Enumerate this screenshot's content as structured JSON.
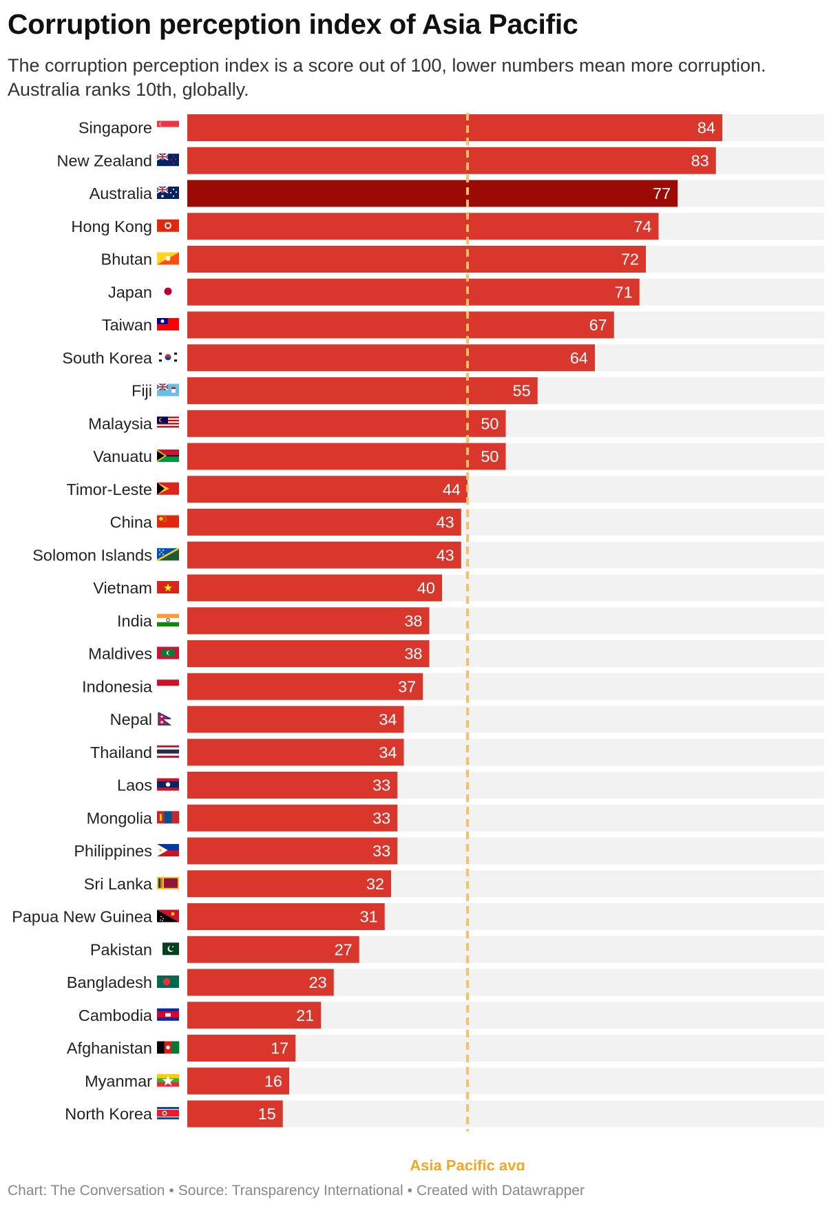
{
  "header": {
    "title": "Corruption perception index of Asia Pacific",
    "subtitle": "The corruption perception index is a score out of 100, lower numbers mean more corruption. Australia ranks 10th, globally."
  },
  "footer": {
    "chart_credit": "Chart: The Conversation",
    "source": "Source: Transparency International",
    "tool": "Created with Datawrapper",
    "separator": "•"
  },
  "colors": {
    "bar": "#d9372c",
    "highlight_bar": "#9b0a03",
    "bar_background": "#f2f2f2",
    "average_line": "#f8c164",
    "average_label": "#f5a623"
  },
  "chart_data": {
    "type": "bar",
    "orientation": "horizontal",
    "xlim": [
      0,
      100
    ],
    "grid": false,
    "highlight_category": "Australia",
    "reference_line": {
      "label": "Asia Pacific avg",
      "value": 44
    },
    "categories": [
      "Singapore",
      "New Zealand",
      "Australia",
      "Hong Kong",
      "Bhutan",
      "Japan",
      "Taiwan",
      "South Korea",
      "Fiji",
      "Malaysia",
      "Vanuatu",
      "Timor-Leste",
      "China",
      "Solomon Islands",
      "Vietnam",
      "India",
      "Maldives",
      "Indonesia",
      "Nepal",
      "Thailand",
      "Laos",
      "Mongolia",
      "Philippines",
      "Sri Lanka",
      "Papua New Guinea",
      "Pakistan",
      "Bangladesh",
      "Cambodia",
      "Afghanistan",
      "Myanmar",
      "North Korea"
    ],
    "values": [
      84,
      83,
      77,
      74,
      72,
      71,
      67,
      64,
      55,
      50,
      50,
      44,
      43,
      43,
      40,
      38,
      38,
      37,
      34,
      34,
      33,
      33,
      33,
      32,
      31,
      27,
      23,
      21,
      17,
      16,
      15
    ],
    "flag_icons": [
      "singapore-flag-icon",
      "new-zealand-flag-icon",
      "australia-flag-icon",
      "hong-kong-flag-icon",
      "bhutan-flag-icon",
      "japan-flag-icon",
      "taiwan-flag-icon",
      "south-korea-flag-icon",
      "fiji-flag-icon",
      "malaysia-flag-icon",
      "vanuatu-flag-icon",
      "timor-leste-flag-icon",
      "china-flag-icon",
      "solomon-islands-flag-icon",
      "vietnam-flag-icon",
      "india-flag-icon",
      "maldives-flag-icon",
      "indonesia-flag-icon",
      "nepal-flag-icon",
      "thailand-flag-icon",
      "laos-flag-icon",
      "mongolia-flag-icon",
      "philippines-flag-icon",
      "sri-lanka-flag-icon",
      "papua-new-guinea-flag-icon",
      "pakistan-flag-icon",
      "bangladesh-flag-icon",
      "cambodia-flag-icon",
      "afghanistan-flag-icon",
      "myanmar-flag-icon",
      "north-korea-flag-icon"
    ]
  }
}
